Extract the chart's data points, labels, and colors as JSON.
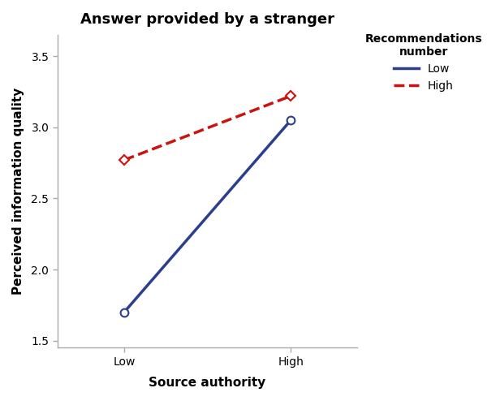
{
  "title": "Answer provided by a stranger",
  "xlabel": "Source authority",
  "ylabel": "Perceived information quality",
  "x_categories": [
    "Low",
    "High"
  ],
  "x_positions": [
    0,
    1
  ],
  "low_rec_values": [
    1.7,
    3.05
  ],
  "high_rec_values": [
    2.77,
    3.22
  ],
  "low_rec_color": "#2b3f8c",
  "high_rec_color": "#cc1111",
  "spine_color": "#aaaaaa",
  "ylim": [
    1.45,
    3.65
  ],
  "yticks": [
    1.5,
    2.0,
    2.5,
    3.0,
    3.5
  ],
  "legend_title": "Recommendations\nnumber",
  "legend_labels": [
    "Low",
    "High"
  ],
  "title_fontsize": 13,
  "axis_label_fontsize": 11,
  "tick_fontsize": 10,
  "legend_fontsize": 10,
  "legend_title_fontsize": 10
}
